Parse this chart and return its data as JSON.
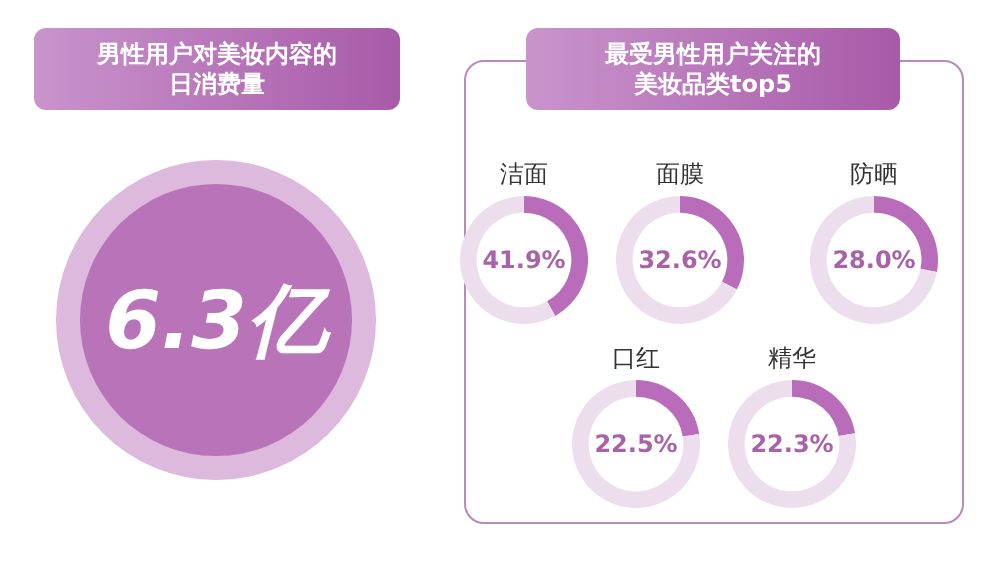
{
  "chart_data": [
    {
      "type": "other",
      "title": "男性用户对美妆内容的日消费量",
      "annotations": [
        "6.3亿"
      ]
    },
    {
      "type": "other",
      "title": "最受男性用户关注的美妆品类top5"
    },
    {
      "type": "donut",
      "title": "洁面",
      "categories": [
        null,
        null
      ],
      "values": [
        41.9,
        58.1
      ],
      "colors": [
        "#b86cb9",
        "#eddeee"
      ],
      "annotations": [
        "41.9%"
      ]
    },
    {
      "type": "donut",
      "title": "面膜",
      "categories": [
        null,
        null
      ],
      "values": [
        32.6,
        67.4
      ],
      "colors": [
        "#b86cb9",
        "#eddeee"
      ],
      "annotations": [
        "32.6%"
      ]
    },
    {
      "type": "donut",
      "title": "防晒",
      "categories": [
        null,
        null
      ],
      "values": [
        28.0,
        72.0
      ],
      "colors": [
        "#b86cb9",
        "#eddeee"
      ],
      "annotations": [
        "28.0%"
      ]
    },
    {
      "type": "donut",
      "title": "口红",
      "categories": [
        null,
        null
      ],
      "values": [
        22.5,
        77.5
      ],
      "colors": [
        "#b86cb9",
        "#eddeee"
      ],
      "annotations": [
        "22.5%"
      ]
    },
    {
      "type": "donut",
      "title": "精华",
      "categories": [
        null,
        null
      ],
      "values": [
        22.3,
        77.7
      ],
      "colors": [
        "#b86cb9",
        "#eddeee"
      ],
      "annotations": [
        "22.3%"
      ]
    }
  ]
}
